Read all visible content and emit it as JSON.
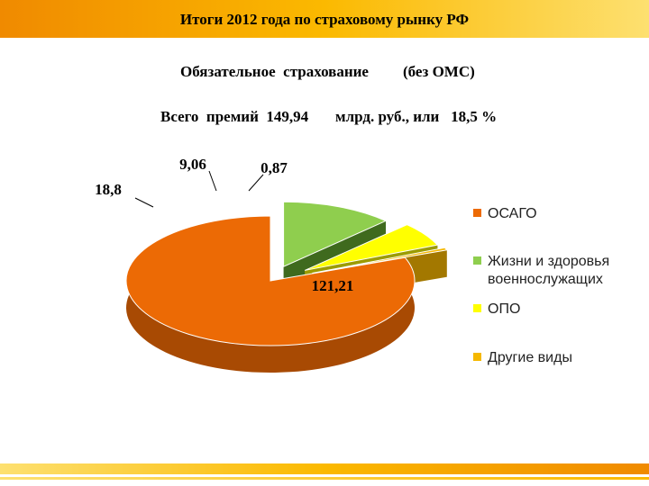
{
  "header": {
    "title": "Итоги 2012 года по страховому рынку РФ",
    "subtitle_left": "Обязательное  страхование",
    "subtitle_right": "(без ОМС)",
    "total_left": "Всего  премий  149,94",
    "total_right": "млрд. руб., или   18,5 %"
  },
  "colors": {
    "accent": "#f5a000"
  },
  "chart_data": {
    "type": "pie",
    "labels": [
      "ОСАГО",
      "Жизни и здоровья военнослужащих",
      "ОПО",
      "Другие виды"
    ],
    "values": [
      121.21,
      18.8,
      9.06,
      0.87
    ],
    "value_labels": [
      "121,21",
      "18,8",
      "9,06",
      "0,87"
    ],
    "legend": [
      "ОСАГО",
      "Жизни и здоровья\nвоеннослужащих",
      "ОПО",
      "Другие виды"
    ],
    "colors": [
      "#ec6a05",
      "#8fce4e",
      "#ffff00",
      "#f5b800"
    ],
    "side_colors": [
      "#a84a03",
      "#3f6a1e",
      "#9c9c00",
      "#a37800"
    ],
    "legend_position": "right",
    "style": "3d"
  }
}
